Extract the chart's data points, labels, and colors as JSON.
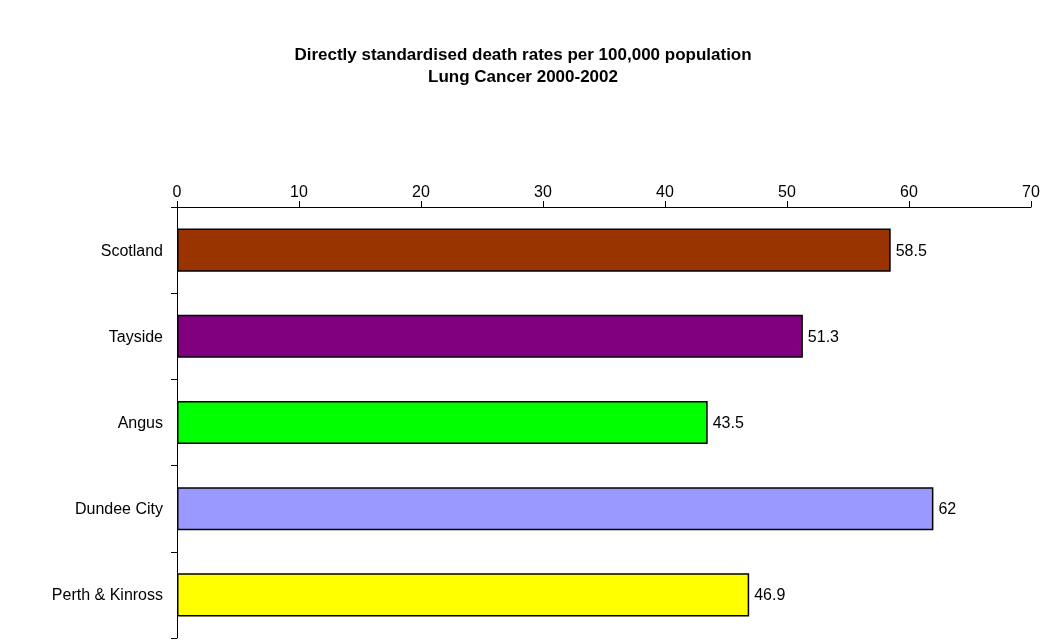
{
  "chart_data": {
    "type": "bar",
    "orientation": "horizontal",
    "title": "Directly standardised death rates per 100,000 population\nLung Cancer 2000-2002",
    "categories": [
      "Scotland",
      "Tayside",
      "Angus",
      "Dundee City",
      "Perth & Kinross"
    ],
    "values": [
      58.5,
      51.3,
      43.5,
      62,
      46.9
    ],
    "colors": [
      "#993300",
      "#800080",
      "#00ff00",
      "#9999ff",
      "#ffff00"
    ],
    "xlim": [
      0,
      70
    ],
    "xticks": [
      0,
      10,
      20,
      30,
      40,
      50,
      60,
      70
    ],
    "data_labels": true
  }
}
